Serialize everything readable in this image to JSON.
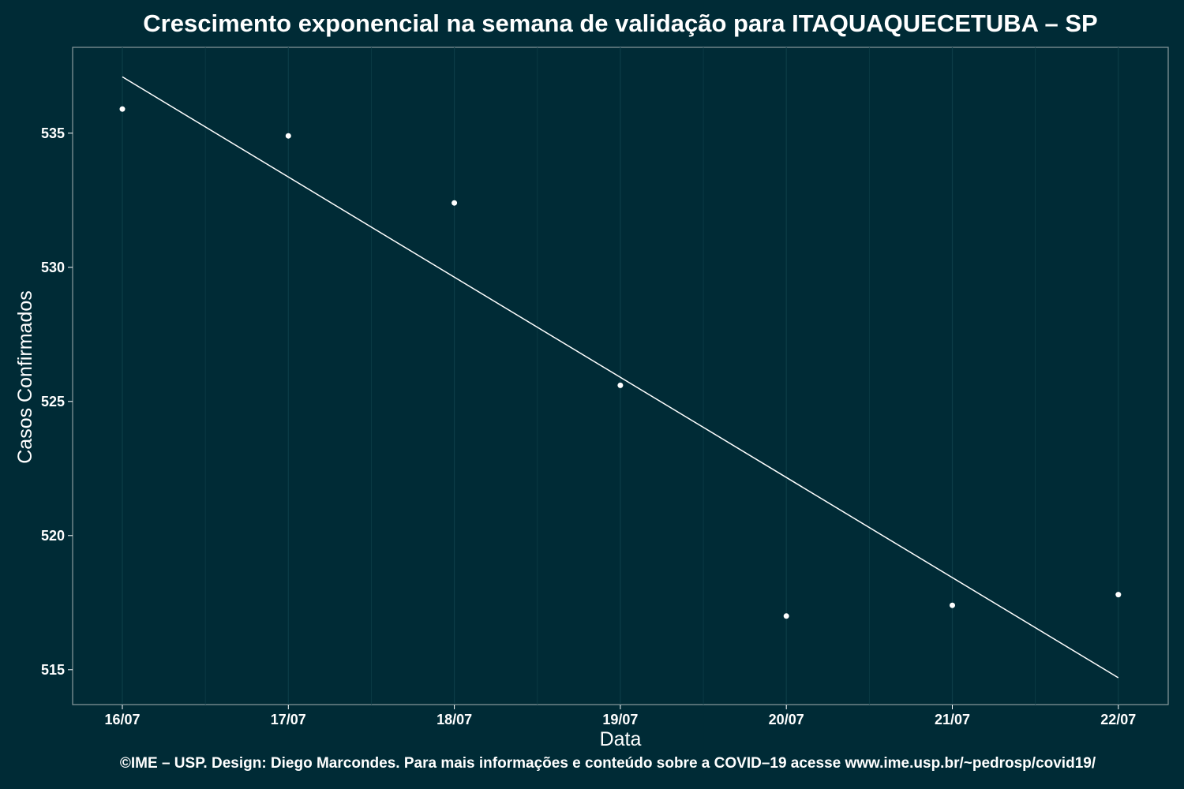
{
  "title": "Crescimento exponencial na semana de validação para ITAQUAQUECETUBA – SP",
  "footer": "©IME – USP. Design: Diego Marcondes. Para mais informações e conteúdo sobre a COVID–19 acesse www.ime.usp.br/~pedrosp/covid19/",
  "colors": {
    "background": "#002b36",
    "foreground": "#ffffff",
    "grid": "#0c3d47",
    "border": "#8a9a9e"
  },
  "chart_data": {
    "type": "scatter",
    "title": "Crescimento exponencial na semana de validação para ITAQUAQUECETUBA – SP",
    "xlabel": "Data",
    "ylabel": "Casos Confirmados",
    "categories": [
      "16/07",
      "17/07",
      "18/07",
      "19/07",
      "20/07",
      "21/07",
      "22/07"
    ],
    "points": [
      535.9,
      534.9,
      532.4,
      525.6,
      517.0,
      517.4,
      517.8
    ],
    "fit_line": [
      537.1,
      514.7
    ],
    "yticks": [
      515,
      520,
      525,
      530,
      535
    ],
    "ylim": [
      513.7,
      538.2
    ],
    "grid": true,
    "legend": "none"
  }
}
